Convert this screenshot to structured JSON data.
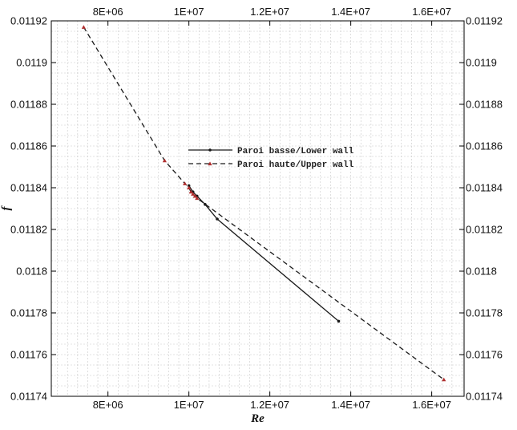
{
  "chart_data": {
    "type": "line",
    "xlabel": "Re",
    "ylabel": "f",
    "xlim": [
      6600000,
      16800000
    ],
    "ylim": [
      0.01174,
      0.01192
    ],
    "x_ticks": [
      {
        "value": 8000000,
        "label": "8E+06"
      },
      {
        "value": 10000000,
        "label": "1E+07"
      },
      {
        "value": 12000000,
        "label": "1.2E+07"
      },
      {
        "value": 14000000,
        "label": "1.4E+07"
      },
      {
        "value": 16000000,
        "label": "1.6E+07"
      }
    ],
    "y_ticks": [
      {
        "value": 0.01174,
        "label": "0.01174"
      },
      {
        "value": 0.01176,
        "label": "0.01176"
      },
      {
        "value": 0.01178,
        "label": "0.01178"
      },
      {
        "value": 0.0118,
        "label": "0.0118"
      },
      {
        "value": 0.01182,
        "label": "0.01182"
      },
      {
        "value": 0.01184,
        "label": "0.01184"
      },
      {
        "value": 0.01186,
        "label": "0.01186"
      },
      {
        "value": 0.01188,
        "label": "0.01188"
      },
      {
        "value": 0.0119,
        "label": "0.0119"
      },
      {
        "value": 0.01192,
        "label": "0.01192"
      }
    ],
    "grid": true,
    "legend_position": "center",
    "series": [
      {
        "name": "Paroi basse/Lower wall",
        "color": "#1a1a1a",
        "dash": "solid",
        "marker": "dot",
        "x": [
          10000000,
          10100000,
          10200000,
          10400000,
          10700000,
          13700000
        ],
        "y": [
          0.011841,
          0.011838,
          0.011836,
          0.011832,
          0.011825,
          0.011776
        ]
      },
      {
        "name": "Paroi haute/Upper wall",
        "color": "#1a1a1a",
        "marker_color": "#b03030",
        "dash": "dashed",
        "marker": "triangle",
        "x": [
          7400000,
          9400000,
          9900000,
          10000000,
          10050000,
          10100000,
          10150000,
          10200000,
          16300000
        ],
        "y": [
          0.011917,
          0.011853,
          0.011842,
          0.01184,
          0.011838,
          0.011837,
          0.011836,
          0.011835,
          0.011748
        ]
      }
    ]
  }
}
